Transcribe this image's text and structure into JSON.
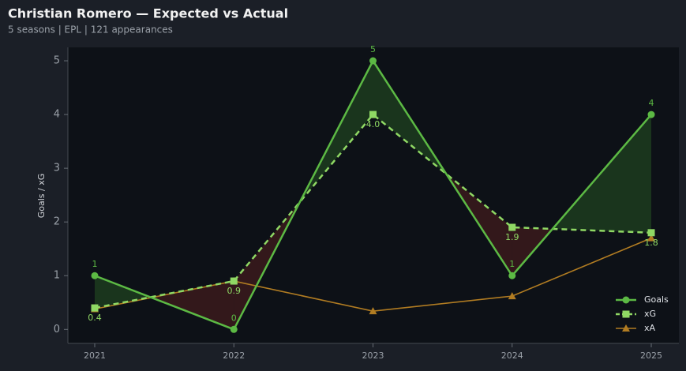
{
  "chart_data": {
    "type": "line",
    "title": "Christian Romero — Expected vs Actual",
    "subtitle": "5 seasons | EPL | 121 appearances",
    "y_label": "Goals / xG",
    "categories": [
      "2021",
      "2022",
      "2023",
      "2024",
      "2025"
    ],
    "series": [
      {
        "name": "Goals",
        "color": "#5cb944",
        "values": [
          1,
          0,
          5,
          1,
          4
        ]
      },
      {
        "name": "xG",
        "color": "#8fd864",
        "values": [
          0.4,
          0.9,
          4.0,
          1.9,
          1.8
        ],
        "value_labels": [
          "0.4",
          "0.9",
          "4.0",
          "1.9",
          "1.8"
        ]
      },
      {
        "name": "xA",
        "color": "#b17c22",
        "values": [
          0.38,
          0.9,
          0.34,
          0.62,
          1.7
        ]
      }
    ],
    "ylim": [
      -0.26,
      5.25
    ],
    "yticks": [
      0,
      1,
      2,
      3,
      4,
      5
    ],
    "legend": "lower right"
  }
}
